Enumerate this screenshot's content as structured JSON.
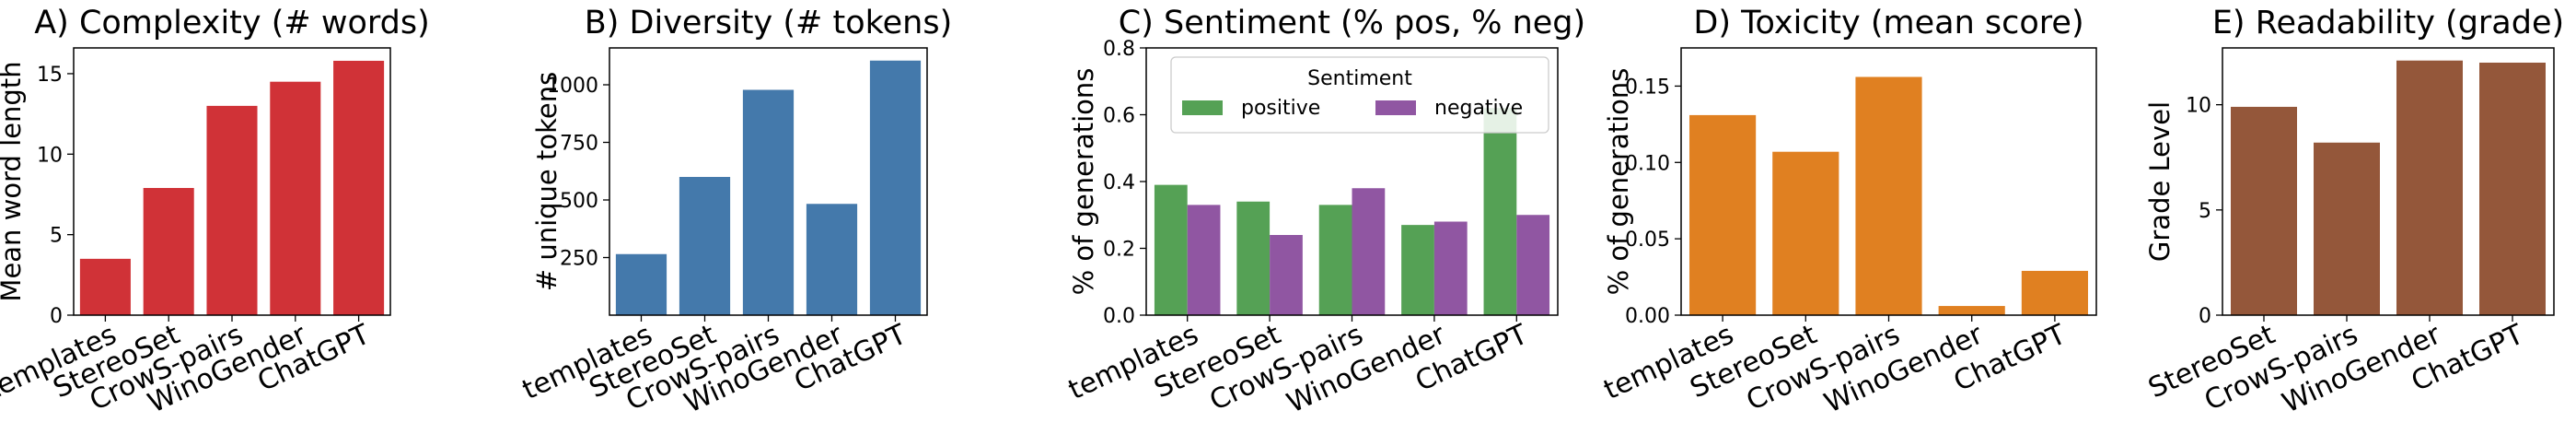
{
  "chart_data": [
    {
      "id": "A",
      "type": "bar",
      "title": "A) Complexity (# words)",
      "xlabel": "",
      "ylabel": "Mean word length",
      "categories": [
        "templates",
        "StereoSet",
        "CrowS-pairs",
        "WinoGender",
        "ChatGPT"
      ],
      "values": [
        3.5,
        7.9,
        13.0,
        14.5,
        15.8
      ],
      "ylim": [
        0,
        16.6
      ],
      "yticks": [
        0,
        5,
        10,
        15
      ],
      "ytick_labels": [
        "0",
        "5",
        "10",
        "15"
      ],
      "color": "#d03237"
    },
    {
      "id": "B",
      "type": "bar",
      "title": "B) Diversity (# tokens)",
      "xlabel": "",
      "ylabel": "# unique tokens",
      "categories": [
        "templates",
        "StereoSet",
        "CrowS-pairs",
        "WinoGender",
        "ChatGPT"
      ],
      "values": [
        265,
        600,
        978,
        483,
        1105
      ],
      "ylim": [
        0,
        1160
      ],
      "yticks": [
        250,
        500,
        750,
        1000
      ],
      "ytick_labels": [
        "250",
        "500",
        "750",
        "1000"
      ],
      "color": "#4479ab"
    },
    {
      "id": "C",
      "type": "bar",
      "title": "C) Sentiment (% pos, % neg)",
      "xlabel": "",
      "ylabel": "% of generations",
      "categories": [
        "templates",
        "StereoSet",
        "CrowS-pairs",
        "WinoGender",
        "ChatGPT"
      ],
      "series": [
        {
          "name": "positive",
          "values": [
            0.39,
            0.34,
            0.33,
            0.27,
            0.62
          ],
          "color": "#55a155"
        },
        {
          "name": "negative",
          "values": [
            0.33,
            0.24,
            0.38,
            0.28,
            0.3
          ],
          "color": "#9056a2"
        }
      ],
      "ylim": [
        0,
        0.8
      ],
      "yticks": [
        0.0,
        0.2,
        0.4,
        0.6,
        0.8
      ],
      "ytick_labels": [
        "0.0",
        "0.2",
        "0.4",
        "0.6",
        "0.8"
      ],
      "legend": {
        "title": "Sentiment",
        "placement": "top-center"
      }
    },
    {
      "id": "D",
      "type": "bar",
      "title": "D) Toxicity (mean score)",
      "xlabel": "",
      "ylabel": "% of generations",
      "categories": [
        "templates",
        "StereoSet",
        "CrowS-pairs",
        "WinoGender",
        "ChatGPT"
      ],
      "values": [
        0.131,
        0.107,
        0.156,
        0.006,
        0.029
      ],
      "ylim": [
        0,
        0.175
      ],
      "yticks": [
        0.0,
        0.05,
        0.1,
        0.15
      ],
      "ytick_labels": [
        "0.00",
        "0.05",
        "0.10",
        "0.15"
      ],
      "color": "#e08021"
    },
    {
      "id": "E",
      "type": "bar",
      "title": "E) Readability (grade)",
      "xlabel": "",
      "ylabel": "Grade Level",
      "categories": [
        "StereoSet",
        "CrowS-pairs",
        "WinoGender",
        "ChatGPT"
      ],
      "values": [
        9.9,
        8.2,
        12.1,
        12.0
      ],
      "ylim": [
        0,
        12.7
      ],
      "yticks": [
        0,
        5,
        10
      ],
      "ytick_labels": [
        "0",
        "5",
        "10"
      ],
      "color": "#94573a"
    }
  ]
}
